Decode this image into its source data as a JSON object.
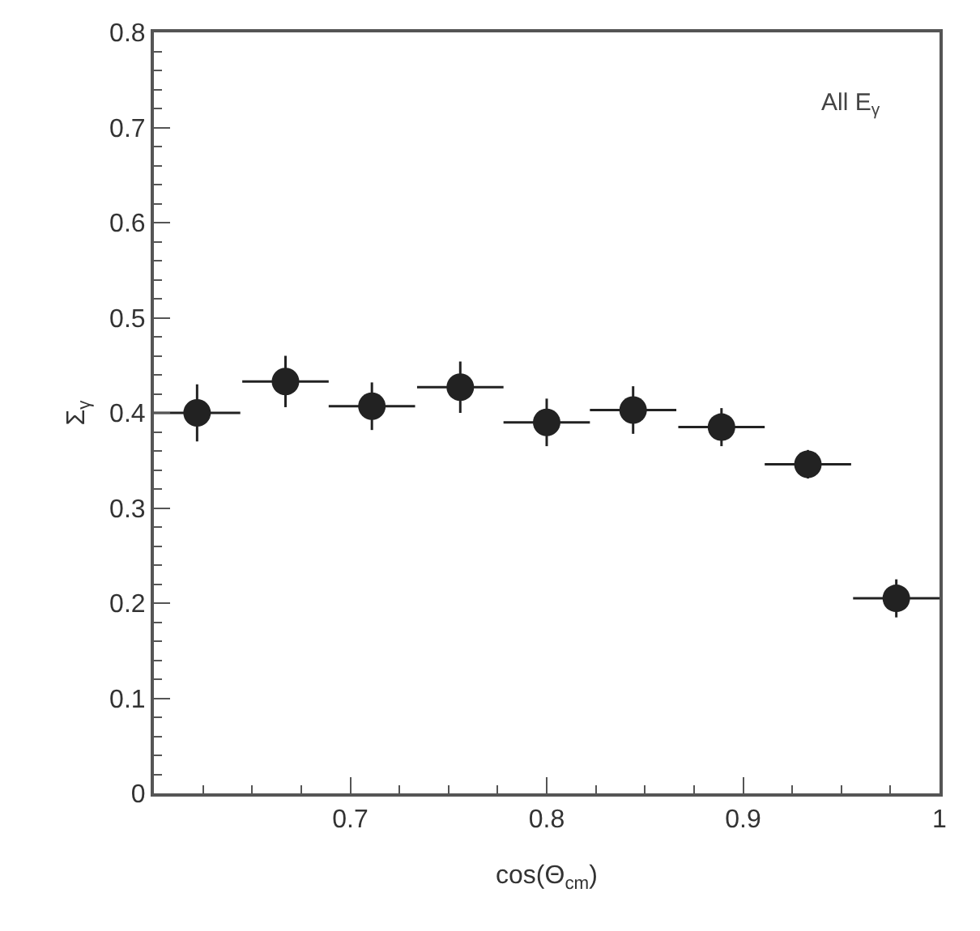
{
  "chart_data": {
    "type": "scatter",
    "xlabel": "cos(Θ$_{cm}$)",
    "ylabel": "Σ$_{γ}$",
    "annotations": [
      "All E$_{γ}$"
    ],
    "x": [
      0.622,
      0.667,
      0.711,
      0.756,
      0.8,
      0.844,
      0.889,
      0.933,
      0.978
    ],
    "values": [
      0.4,
      0.433,
      0.407,
      0.427,
      0.39,
      0.403,
      0.385,
      0.346,
      0.205
    ],
    "errors": [
      0.03,
      0.027,
      0.025,
      0.027,
      0.025,
      0.025,
      0.02,
      0.015,
      0.02
    ],
    "xerrors": [
      0.022,
      0.022,
      0.022,
      0.022,
      0.022,
      0.022,
      0.022,
      0.022,
      0.022
    ],
    "color": "#222222",
    "marker": "circle",
    "grid": false,
    "legend": false,
    "xlim": [
      0.6,
      1.0
    ],
    "xticks": [
      0.7,
      0.8,
      0.9,
      1
    ],
    "ylim": [
      0,
      0.8
    ],
    "yticks": [
      0,
      0.1,
      0.2,
      0.3,
      0.4,
      0.5,
      0.6,
      0.7,
      0.8
    ]
  }
}
